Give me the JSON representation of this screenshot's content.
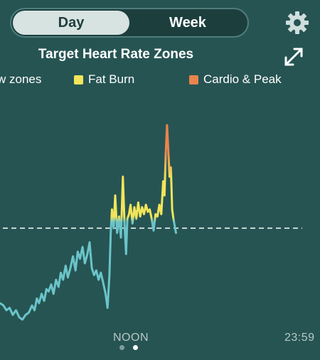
{
  "toggle": {
    "day_label": "Day",
    "week_label": "Week",
    "selected": "Day"
  },
  "header": {
    "title": "Target Heart Rate Zones"
  },
  "icons": {
    "settings": "gear-icon",
    "expand": "expand-icon"
  },
  "legend": [
    {
      "label": "w zones",
      "color": "#6bc4c9"
    },
    {
      "label": "Fat Burn",
      "color": "#f2e55a"
    },
    {
      "label": "Cardio & Peak",
      "color": "#e9844c"
    }
  ],
  "colors": {
    "background": "#265453",
    "below_zones": "#6bc4c9",
    "fat_burn": "#f2e55a",
    "cardio_peak": "#e9844c"
  },
  "chart_data": {
    "type": "line",
    "x_tick_labels": [
      "NOON",
      "23:59"
    ],
    "threshold": 0.42,
    "points": [
      [
        0.0,
        0.1
      ],
      [
        0.011,
        0.09
      ],
      [
        0.02,
        0.07
      ],
      [
        0.03,
        0.08
      ],
      [
        0.04,
        0.05
      ],
      [
        0.05,
        0.07
      ],
      [
        0.06,
        0.04
      ],
      [
        0.07,
        0.03
      ],
      [
        0.08,
        0.05
      ],
      [
        0.09,
        0.06
      ],
      [
        0.1,
        0.09
      ],
      [
        0.108,
        0.07
      ],
      [
        0.115,
        0.12
      ],
      [
        0.122,
        0.1
      ],
      [
        0.13,
        0.14
      ],
      [
        0.138,
        0.11
      ],
      [
        0.145,
        0.16
      ],
      [
        0.152,
        0.15
      ],
      [
        0.16,
        0.18
      ],
      [
        0.167,
        0.14
      ],
      [
        0.175,
        0.2
      ],
      [
        0.183,
        0.17
      ],
      [
        0.19,
        0.23
      ],
      [
        0.197,
        0.2
      ],
      [
        0.205,
        0.26
      ],
      [
        0.212,
        0.21
      ],
      [
        0.22,
        0.25
      ],
      [
        0.228,
        0.3
      ],
      [
        0.236,
        0.24
      ],
      [
        0.243,
        0.32
      ],
      [
        0.25,
        0.29
      ],
      [
        0.258,
        0.34
      ],
      [
        0.265,
        0.27
      ],
      [
        0.273,
        0.31
      ],
      [
        0.28,
        0.36
      ],
      [
        0.287,
        0.25
      ],
      [
        0.294,
        0.22
      ],
      [
        0.301,
        0.24
      ],
      [
        0.308,
        0.2
      ],
      [
        0.315,
        0.23
      ],
      [
        0.322,
        0.19
      ],
      [
        0.33,
        0.14
      ],
      [
        0.336,
        0.08
      ],
      [
        0.342,
        0.22
      ],
      [
        0.346,
        0.4
      ],
      [
        0.35,
        0.5
      ],
      [
        0.355,
        0.42
      ],
      [
        0.36,
        0.56
      ],
      [
        0.366,
        0.4
      ],
      [
        0.372,
        0.47
      ],
      [
        0.378,
        0.38
      ],
      [
        0.384,
        0.64
      ],
      [
        0.389,
        0.44
      ],
      [
        0.394,
        0.31
      ],
      [
        0.398,
        0.46
      ],
      [
        0.403,
        0.48
      ],
      [
        0.408,
        0.52
      ],
      [
        0.414,
        0.44
      ],
      [
        0.42,
        0.51
      ],
      [
        0.426,
        0.46
      ],
      [
        0.432,
        0.53
      ],
      [
        0.438,
        0.47
      ],
      [
        0.444,
        0.51
      ],
      [
        0.45,
        0.48
      ],
      [
        0.456,
        0.52
      ],
      [
        0.462,
        0.49
      ],
      [
        0.468,
        0.5
      ],
      [
        0.474,
        0.46
      ],
      [
        0.48,
        0.41
      ],
      [
        0.486,
        0.48
      ],
      [
        0.492,
        0.47
      ],
      [
        0.498,
        0.52
      ],
      [
        0.504,
        0.48
      ],
      [
        0.51,
        0.62
      ],
      [
        0.514,
        0.56
      ],
      [
        0.518,
        0.74
      ],
      [
        0.522,
        0.86
      ],
      [
        0.526,
        0.75
      ],
      [
        0.53,
        0.64
      ],
      [
        0.534,
        0.68
      ],
      [
        0.538,
        0.5
      ],
      [
        0.542,
        0.46
      ],
      [
        0.546,
        0.43
      ],
      [
        0.55,
        0.4
      ]
    ]
  }
}
